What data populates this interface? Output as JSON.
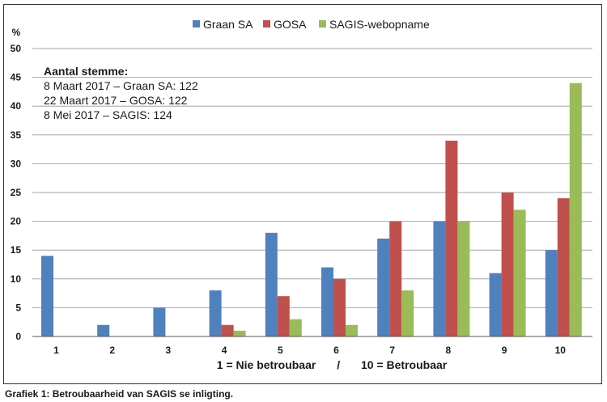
{
  "chart_data": {
    "type": "bar",
    "ylabel": "%",
    "ylim": [
      0,
      50
    ],
    "yticks": [
      0,
      5,
      10,
      15,
      20,
      25,
      30,
      35,
      40,
      45,
      50
    ],
    "grid": true,
    "legend_position": "top",
    "categories": [
      "1",
      "2",
      "3",
      "4",
      "5",
      "6",
      "7",
      "8",
      "9",
      "10"
    ],
    "series": [
      {
        "name": "Graan SA",
        "color": "#4f81bd",
        "values": [
          14,
          2,
          5,
          8,
          18,
          12,
          17,
          20,
          11,
          15
        ]
      },
      {
        "name": "GOSA",
        "color": "#c0504d",
        "values": [
          0,
          0,
          0,
          2,
          7,
          10,
          20,
          34,
          25,
          24
        ]
      },
      {
        "name": "SAGIS-webopname",
        "color": "#9bbb59",
        "values": [
          0,
          0,
          0,
          1,
          3,
          2,
          8,
          20,
          22,
          44
        ]
      }
    ],
    "xlabel": {
      "left": "1 = Nie betroubaar",
      "separator": "/",
      "right": "10 = Betroubaar"
    },
    "annotation": {
      "title": "Aantal stemme:",
      "lines": [
        "8 Maart 2017 – Graan SA: 122",
        "22 Maart 2017 – GOSA: 122",
        "8 Mei 2017 – SAGIS: 124"
      ]
    }
  },
  "caption": "Grafiek 1: Betroubaarheid van SAGIS se inligting."
}
